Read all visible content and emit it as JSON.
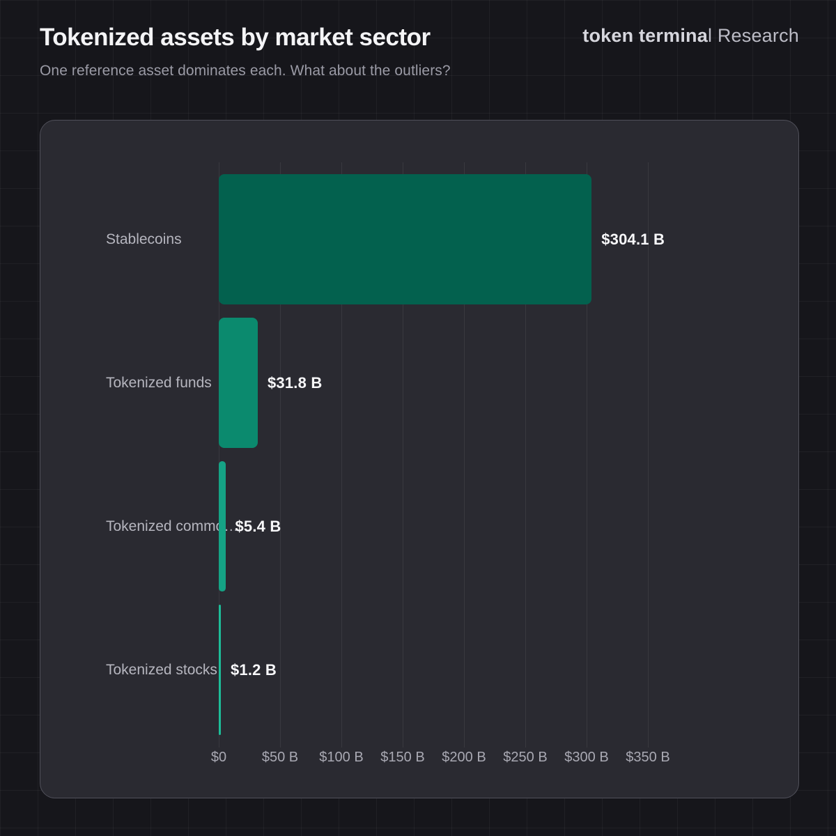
{
  "header": {
    "title": "Tokenized assets by market sector",
    "subtitle": "One reference asset dominates each. What about the outliers?",
    "logo_bold": "token termina",
    "logo_light": "l Research"
  },
  "chart_data": {
    "type": "bar",
    "orientation": "horizontal",
    "title": "Tokenized assets by market sector",
    "subtitle": "One reference asset dominates each. What about the outliers?",
    "categories": [
      "Stablecoins",
      "Tokenized funds",
      "Tokenized commo…",
      "Tokenized stocks"
    ],
    "values": [
      304.1,
      31.8,
      5.4,
      1.2
    ],
    "value_labels": [
      "$304.1 B",
      "$31.8 B",
      "$5.4 B",
      "$1.2 B"
    ],
    "unit": "USD billions",
    "xlim": [
      0,
      350
    ],
    "x_tick_values": [
      0,
      50,
      100,
      150,
      200,
      250,
      300,
      350
    ],
    "x_ticks": [
      "$0",
      "$50 B",
      "$100 B",
      "$150 B",
      "$200 B",
      "$250 B",
      "$300 B",
      "$350 B"
    ],
    "grid": "vertical",
    "legend": "none",
    "bar_colors": [
      "#03614e",
      "#0b8a6e",
      "#15a385",
      "#1dbd98"
    ],
    "panel_background": "#2a2a31",
    "page_background": "#16161b"
  }
}
